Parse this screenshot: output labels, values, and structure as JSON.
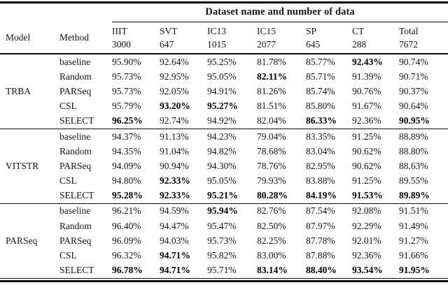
{
  "table": {
    "span_header": "Dataset name and number of data",
    "row_headers": {
      "model": "Model",
      "method": "Method"
    },
    "columns": [
      {
        "name": "IIIT",
        "count": "3000"
      },
      {
        "name": "SVT",
        "count": "647"
      },
      {
        "name": "IC13",
        "count": "1015"
      },
      {
        "name": "IC15",
        "count": "2077"
      },
      {
        "name": "SP",
        "count": "645"
      },
      {
        "name": "CT",
        "count": "288"
      },
      {
        "name": "Total",
        "count": "7672"
      }
    ],
    "groups": [
      {
        "model": "TRBA",
        "rows": [
          {
            "method": "baseline",
            "values": [
              "95.90%",
              "92.64%",
              "95.25%",
              "81.78%",
              "85.77%",
              "92.43%",
              "90.74%"
            ],
            "bold": [
              5
            ]
          },
          {
            "method": "Random",
            "values": [
              "95.73%",
              "92.95%",
              "95.05%",
              "82.11%",
              "85.71%",
              "91.39%",
              "90.71%"
            ],
            "bold": [
              3
            ]
          },
          {
            "method": "PARSeq",
            "values": [
              "95.73%",
              "92.05%",
              "94.91%",
              "81.26%",
              "85.74%",
              "90.76%",
              "90.37%"
            ],
            "bold": []
          },
          {
            "method": "CSL",
            "values": [
              "95.79%",
              "93.20%",
              "95.27%",
              "81.51%",
              "85.80%",
              "91.67%",
              "90.64%"
            ],
            "bold": [
              1,
              2
            ]
          },
          {
            "method": "SELECT",
            "values": [
              "96.25%",
              "92.74%",
              "94.92%",
              "82.04%",
              "86.33%",
              "92.36%",
              "90.95%"
            ],
            "bold": [
              0,
              4,
              6
            ]
          }
        ]
      },
      {
        "model": "VITSTR",
        "rows": [
          {
            "method": "baseline",
            "values": [
              "94.37%",
              "91.13%",
              "94.23%",
              "79.04%",
              "83.35%",
              "91.25%",
              "88.89%"
            ],
            "bold": []
          },
          {
            "method": "Random",
            "values": [
              "94.35%",
              "91.04%",
              "94.82%",
              "78.68%",
              "83.04%",
              "90.62%",
              "88.80%"
            ],
            "bold": []
          },
          {
            "method": "PARSeq",
            "values": [
              "94.09%",
              "90.94%",
              "94.30%",
              "78.76%",
              "82.95%",
              "90.62%",
              "88.63%"
            ],
            "bold": []
          },
          {
            "method": "CSL",
            "values": [
              "94.80%",
              "92.33%",
              "95.05%",
              "79.93%",
              "83.88%",
              "91.25%",
              "89.55%"
            ],
            "bold": [
              1
            ]
          },
          {
            "method": "SELECT",
            "values": [
              "95.28%",
              "92.33%",
              "95.21%",
              "80.28%",
              "84.19%",
              "91.53%",
              "89.89%"
            ],
            "bold": [
              0,
              1,
              2,
              3,
              4,
              5,
              6
            ]
          }
        ]
      },
      {
        "model": "PARSeq",
        "rows": [
          {
            "method": "baseline",
            "values": [
              "96.21%",
              "94.59%",
              "95.94%",
              "82.76%",
              "87.54%",
              "92.08%",
              "91.51%"
            ],
            "bold": [
              2
            ]
          },
          {
            "method": "Random",
            "values": [
              "96.40%",
              "94.47%",
              "95.47%",
              "82.50%",
              "87.97%",
              "92.29%",
              "91.49%"
            ],
            "bold": []
          },
          {
            "method": "PARSeq",
            "values": [
              "96.09%",
              "94.03%",
              "95.73%",
              "82.25%",
              "87.78%",
              "92.01%",
              "91.27%"
            ],
            "bold": []
          },
          {
            "method": "CSL",
            "values": [
              "96.32%",
              "94.71%",
              "95.82%",
              "83.00%",
              "87.88%",
              "92.36%",
              "91.66%"
            ],
            "bold": [
              1
            ]
          },
          {
            "method": "SELECT",
            "values": [
              "96.78%",
              "94.71%",
              "95.71%",
              "83.14%",
              "88.40%",
              "93.54%",
              "91.95%"
            ],
            "bold": [
              0,
              1,
              3,
              4,
              5,
              6
            ]
          }
        ]
      }
    ]
  }
}
